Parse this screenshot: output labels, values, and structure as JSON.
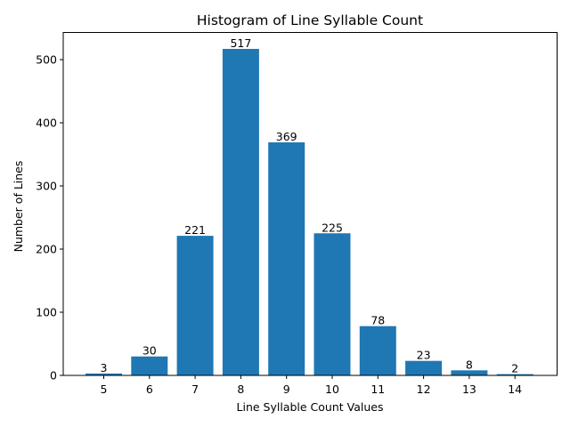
{
  "chart_data": {
    "type": "bar",
    "title": "Histogram of Line Syllable Count",
    "xlabel": "Line Syllable Count Values",
    "ylabel": "Number of Lines",
    "categories": [
      "5",
      "6",
      "7",
      "8",
      "9",
      "10",
      "11",
      "12",
      "13",
      "14"
    ],
    "values": [
      3,
      30,
      221,
      517,
      369,
      225,
      78,
      23,
      8,
      2
    ],
    "data_labels": [
      "3",
      "30",
      "221",
      "517",
      "369",
      "225",
      "78",
      "23",
      "8",
      "2"
    ],
    "y_ticks": [
      0,
      100,
      200,
      300,
      400,
      500
    ],
    "ylim": [
      0,
      543
    ],
    "grid": false,
    "bar_color": "#1f77b4"
  }
}
